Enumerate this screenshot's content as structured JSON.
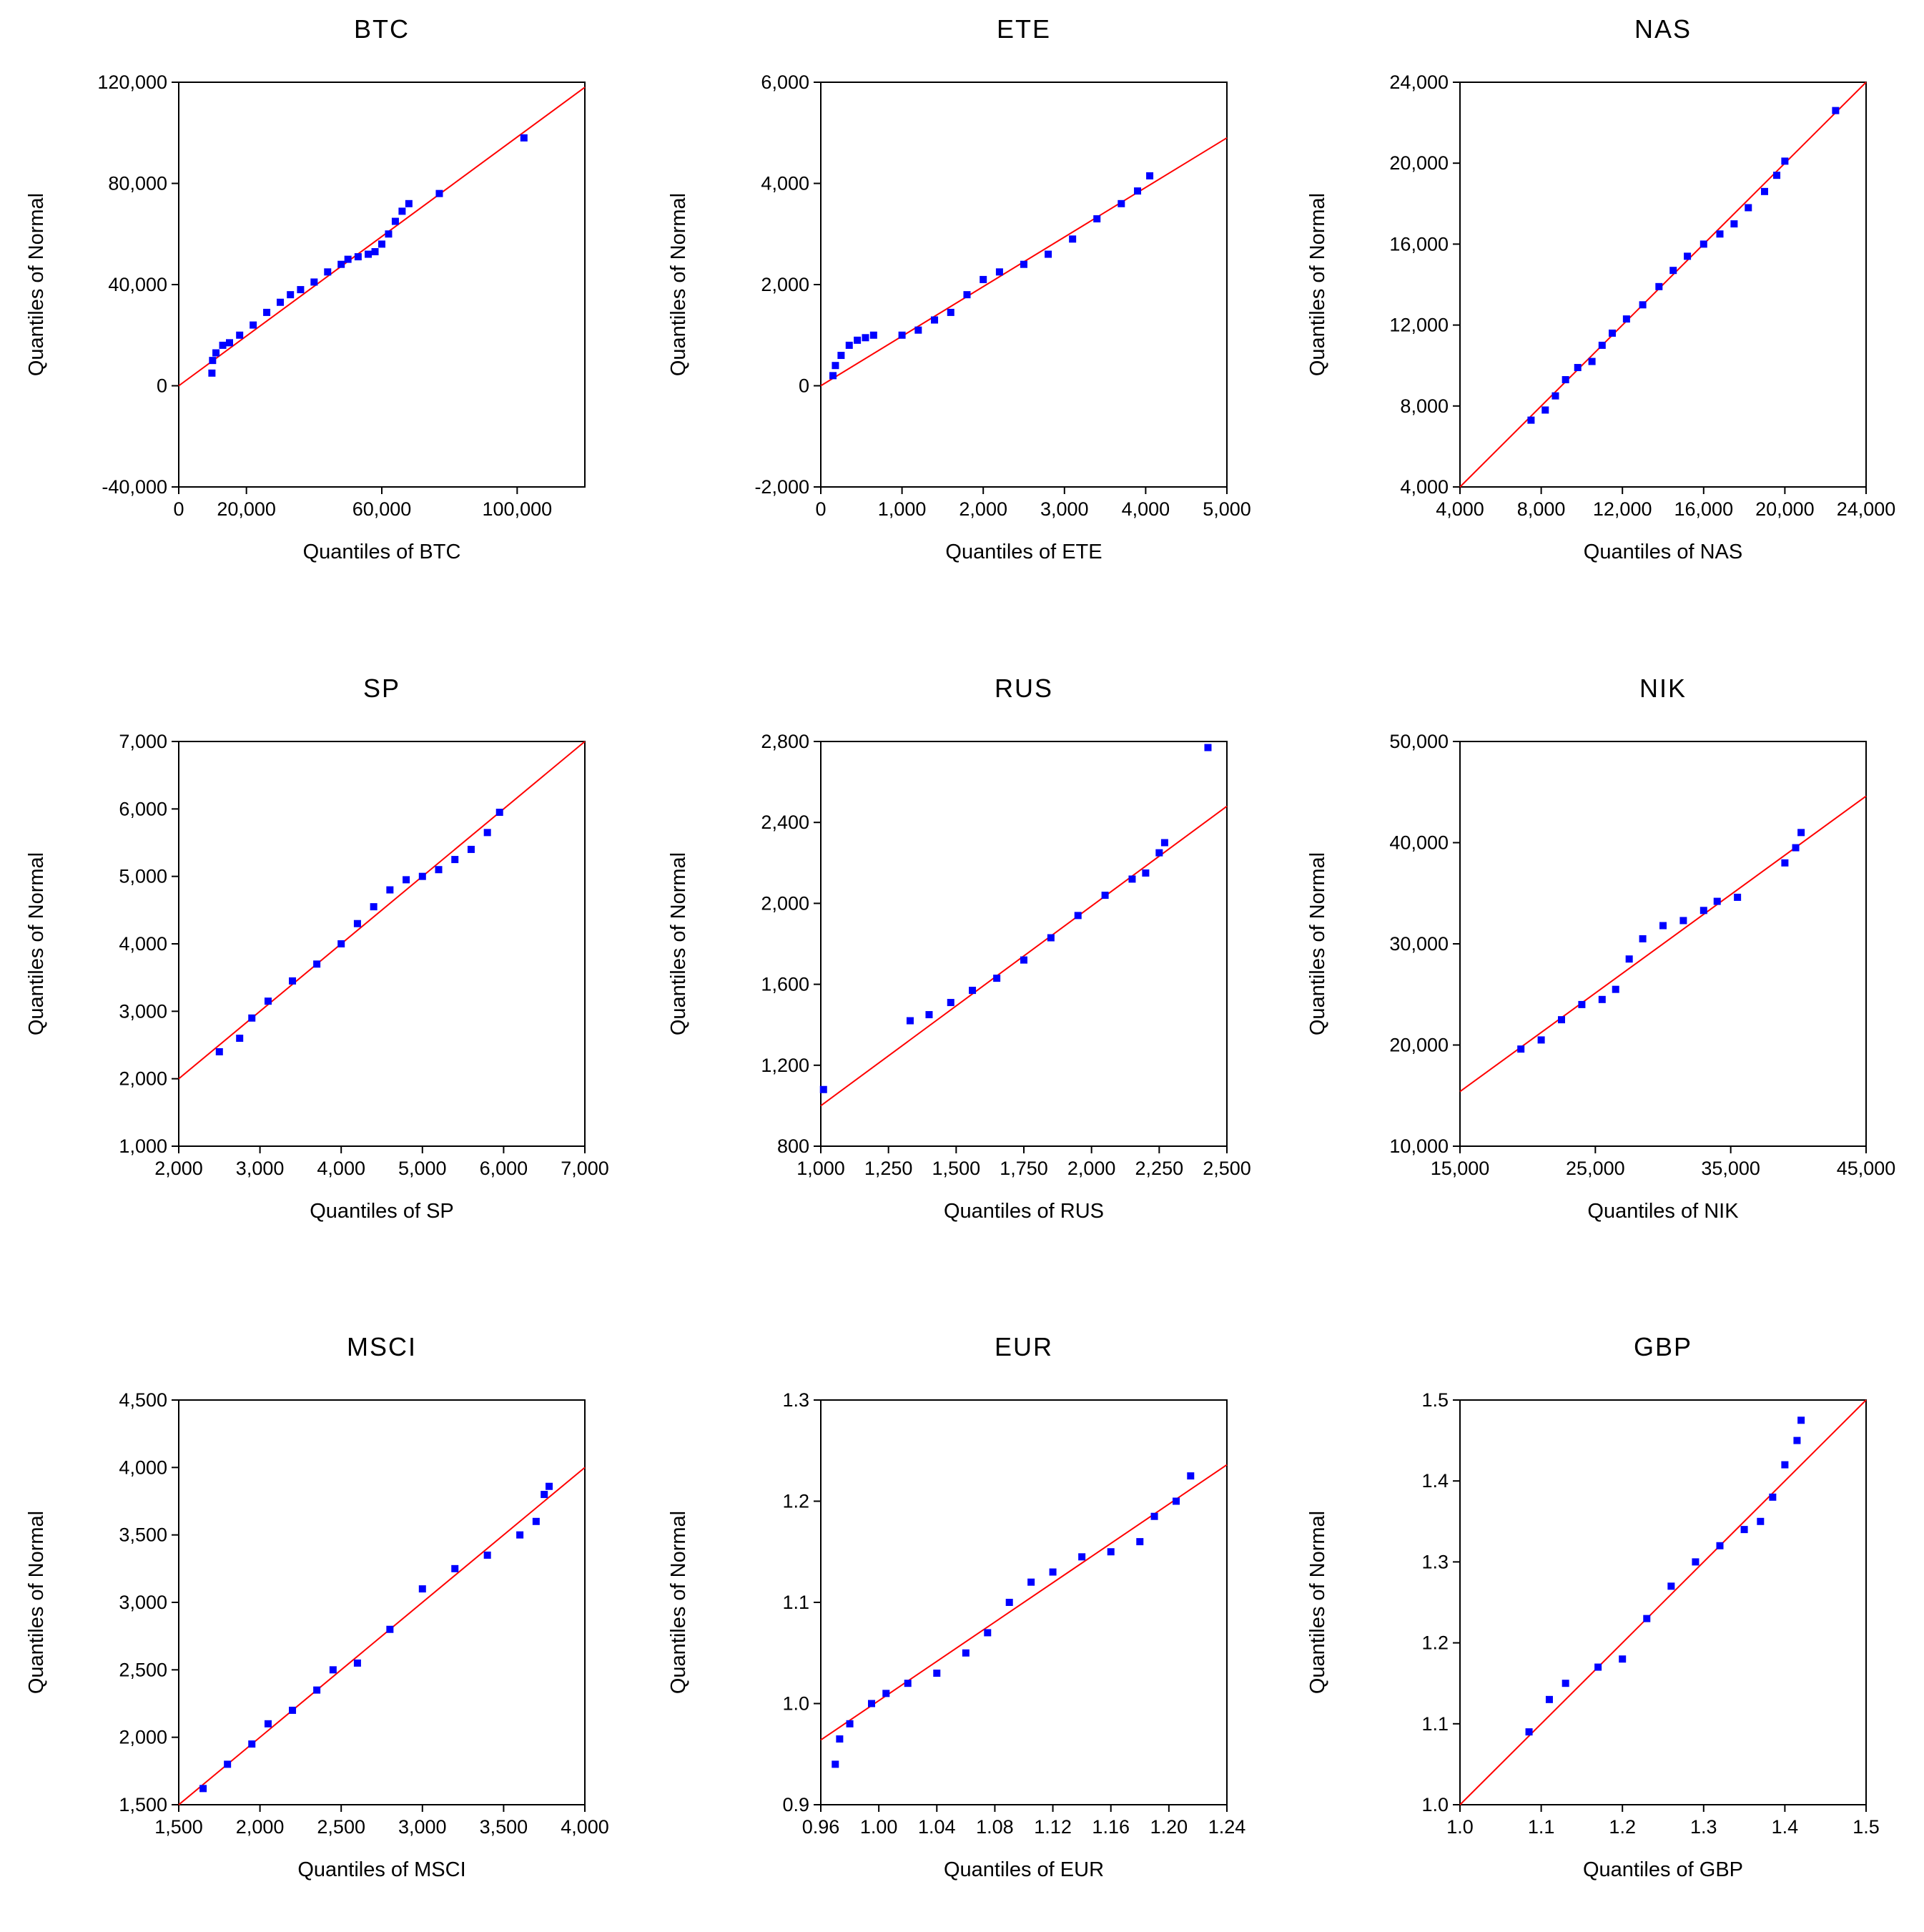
{
  "chart_data": [
    {
      "type": "scatter",
      "title": "BTC",
      "xlabel": "Quantiles of BTC",
      "ylabel": "Quantiles of Normal",
      "xlim": [
        0,
        120000
      ],
      "ylim": [
        -40000,
        120000
      ],
      "xticks": [
        0,
        20000,
        60000,
        100000
      ],
      "xtick_labels": [
        "0",
        "20,000",
        "60,000",
        "100,000"
      ],
      "yticks": [
        -40000,
        0,
        40000,
        80000,
        120000
      ],
      "ytick_labels": [
        "-40,000",
        "0",
        "40,000",
        "80,000",
        "120,000"
      ],
      "reference_line": [
        [
          0,
          0
        ],
        [
          120000,
          118000
        ]
      ],
      "points": [
        [
          9800,
          5000
        ],
        [
          10000,
          10000
        ],
        [
          11000,
          13000
        ],
        [
          13000,
          16000
        ],
        [
          15000,
          17000
        ],
        [
          18000,
          20000
        ],
        [
          22000,
          24000
        ],
        [
          26000,
          29000
        ],
        [
          30000,
          33000
        ],
        [
          33000,
          36000
        ],
        [
          36000,
          38000
        ],
        [
          40000,
          41000
        ],
        [
          44000,
          45000
        ],
        [
          48000,
          48000
        ],
        [
          50000,
          50000
        ],
        [
          53000,
          51000
        ],
        [
          56000,
          52000
        ],
        [
          58000,
          53000
        ],
        [
          60000,
          56000
        ],
        [
          62000,
          60000
        ],
        [
          64000,
          65000
        ],
        [
          66000,
          69000
        ],
        [
          68000,
          72000
        ],
        [
          77000,
          76000
        ],
        [
          102000,
          98000
        ]
      ]
    },
    {
      "type": "scatter",
      "title": "ETE",
      "xlabel": "Quantiles of ETE",
      "ylabel": "Quantiles of Normal",
      "xlim": [
        0,
        5000
      ],
      "ylim": [
        -2000,
        6000
      ],
      "xticks": [
        0,
        1000,
        2000,
        3000,
        4000,
        5000
      ],
      "xtick_labels": [
        "0",
        "1,000",
        "2,000",
        "3,000",
        "4,000",
        "5,000"
      ],
      "yticks": [
        -2000,
        0,
        2000,
        4000,
        6000
      ],
      "ytick_labels": [
        "-2,000",
        "0",
        "2,000",
        "4,000",
        "6,000"
      ],
      "reference_line": [
        [
          0,
          0
        ],
        [
          5000,
          4900
        ]
      ],
      "points": [
        [
          150,
          200
        ],
        [
          180,
          400
        ],
        [
          250,
          600
        ],
        [
          350,
          800
        ],
        [
          450,
          900
        ],
        [
          550,
          950
        ],
        [
          650,
          1000
        ],
        [
          1000,
          1000
        ],
        [
          1200,
          1100
        ],
        [
          1400,
          1300
        ],
        [
          1600,
          1450
        ],
        [
          1800,
          1800
        ],
        [
          2000,
          2100
        ],
        [
          2200,
          2250
        ],
        [
          2500,
          2400
        ],
        [
          2800,
          2600
        ],
        [
          3100,
          2900
        ],
        [
          3400,
          3300
        ],
        [
          3700,
          3600
        ],
        [
          3900,
          3850
        ],
        [
          4050,
          4150
        ]
      ]
    },
    {
      "type": "scatter",
      "title": "NAS",
      "xlabel": "Quantiles of NAS",
      "ylabel": "Quantiles of Normal",
      "xlim": [
        4000,
        24000
      ],
      "ylim": [
        4000,
        24000
      ],
      "xticks": [
        4000,
        8000,
        12000,
        16000,
        20000,
        24000
      ],
      "xtick_labels": [
        "4,000",
        "8,000",
        "12,000",
        "16,000",
        "20,000",
        "24,000"
      ],
      "yticks": [
        4000,
        8000,
        12000,
        16000,
        20000,
        24000
      ],
      "ytick_labels": [
        "4,000",
        "8,000",
        "12,000",
        "16,000",
        "20,000",
        "24,000"
      ],
      "reference_line": [
        [
          4000,
          4000
        ],
        [
          24000,
          24000
        ]
      ],
      "points": [
        [
          7500,
          7300
        ],
        [
          8200,
          7800
        ],
        [
          8700,
          8500
        ],
        [
          9200,
          9300
        ],
        [
          9800,
          9900
        ],
        [
          10500,
          10200
        ],
        [
          11000,
          11000
        ],
        [
          11500,
          11600
        ],
        [
          12200,
          12300
        ],
        [
          13000,
          13000
        ],
        [
          13800,
          13900
        ],
        [
          14500,
          14700
        ],
        [
          15200,
          15400
        ],
        [
          16000,
          16000
        ],
        [
          16800,
          16500
        ],
        [
          17500,
          17000
        ],
        [
          18200,
          17800
        ],
        [
          19000,
          18600
        ],
        [
          19600,
          19400
        ],
        [
          20000,
          20100
        ],
        [
          22500,
          22600
        ]
      ]
    },
    {
      "type": "scatter",
      "title": "SP",
      "xlabel": "Quantiles of SP",
      "ylabel": "Quantiles of Normal",
      "xlim": [
        2000,
        7000
      ],
      "ylim": [
        1000,
        7000
      ],
      "xticks": [
        2000,
        3000,
        4000,
        5000,
        6000,
        7000
      ],
      "xtick_labels": [
        "2,000",
        "3,000",
        "4,000",
        "5,000",
        "6,000",
        "7,000"
      ],
      "yticks": [
        1000,
        2000,
        3000,
        4000,
        5000,
        6000,
        7000
      ],
      "ytick_labels": [
        "1,000",
        "2,000",
        "3,000",
        "4,000",
        "5,000",
        "6,000",
        "7,000"
      ],
      "reference_line": [
        [
          2000,
          2000
        ],
        [
          7000,
          7000
        ]
      ],
      "points": [
        [
          2500,
          2400
        ],
        [
          2750,
          2600
        ],
        [
          2900,
          2900
        ],
        [
          3100,
          3150
        ],
        [
          3400,
          3450
        ],
        [
          3700,
          3700
        ],
        [
          4000,
          4000
        ],
        [
          4200,
          4300
        ],
        [
          4400,
          4550
        ],
        [
          4600,
          4800
        ],
        [
          4800,
          4950
        ],
        [
          5000,
          5000
        ],
        [
          5200,
          5100
        ],
        [
          5400,
          5250
        ],
        [
          5600,
          5400
        ],
        [
          5800,
          5650
        ],
        [
          5950,
          5950
        ]
      ]
    },
    {
      "type": "scatter",
      "title": "RUS",
      "xlabel": "Quantiles of RUS",
      "ylabel": "Quantiles of Normal",
      "xlim": [
        1000,
        2500
      ],
      "ylim": [
        800,
        2800
      ],
      "xticks": [
        1000,
        1250,
        1500,
        1750,
        2000,
        2250,
        2500
      ],
      "xtick_labels": [
        "1,000",
        "1,250",
        "1,500",
        "1,750",
        "2,000",
        "2,250",
        "2,500"
      ],
      "yticks": [
        800,
        1200,
        1600,
        2000,
        2400,
        2800
      ],
      "ytick_labels": [
        "800",
        "1,200",
        "1,600",
        "2,000",
        "2,400",
        "2,800"
      ],
      "reference_line": [
        [
          1000,
          1000
        ],
        [
          2500,
          2480
        ]
      ],
      "points": [
        [
          1010,
          1080
        ],
        [
          1330,
          1420
        ],
        [
          1400,
          1450
        ],
        [
          1480,
          1510
        ],
        [
          1560,
          1570
        ],
        [
          1650,
          1630
        ],
        [
          1750,
          1720
        ],
        [
          1850,
          1830
        ],
        [
          1950,
          1940
        ],
        [
          2050,
          2040
        ],
        [
          2150,
          2120
        ],
        [
          2200,
          2150
        ],
        [
          2250,
          2250
        ],
        [
          2270,
          2300
        ],
        [
          2430,
          2770
        ]
      ]
    },
    {
      "type": "scatter",
      "title": "NIK",
      "xlabel": "Quantiles of NIK",
      "ylabel": "Quantiles of Normal",
      "xlim": [
        15000,
        45000
      ],
      "ylim": [
        10000,
        50000
      ],
      "xticks": [
        15000,
        25000,
        35000,
        45000
      ],
      "xtick_labels": [
        "15,000",
        "25,000",
        "35,000",
        "45,000"
      ],
      "yticks": [
        10000,
        20000,
        30000,
        40000,
        50000
      ],
      "ytick_labels": [
        "10,000",
        "20,000",
        "30,000",
        "40,000",
        "50,000"
      ],
      "reference_line": [
        [
          15000,
          15400
        ],
        [
          45000,
          44600
        ]
      ],
      "points": [
        [
          19500,
          19600
        ],
        [
          21000,
          20500
        ],
        [
          22500,
          22500
        ],
        [
          24000,
          24000
        ],
        [
          25500,
          24500
        ],
        [
          26500,
          25500
        ],
        [
          27500,
          28500
        ],
        [
          28500,
          30500
        ],
        [
          30000,
          31800
        ],
        [
          31500,
          32300
        ],
        [
          33000,
          33300
        ],
        [
          34000,
          34200
        ],
        [
          35500,
          34600
        ],
        [
          39000,
          38000
        ],
        [
          39800,
          39500
        ],
        [
          40200,
          41000
        ]
      ]
    },
    {
      "type": "scatter",
      "title": "MSCI",
      "xlabel": "Quantiles of MSCI",
      "ylabel": "Quantiles of Normal",
      "xlim": [
        1500,
        4000
      ],
      "ylim": [
        1500,
        4500
      ],
      "xticks": [
        1500,
        2000,
        2500,
        3000,
        3500,
        4000
      ],
      "xtick_labels": [
        "1,500",
        "2,000",
        "2,500",
        "3,000",
        "3,500",
        "4,000"
      ],
      "yticks": [
        1500,
        2000,
        2500,
        3000,
        3500,
        4000,
        4500
      ],
      "ytick_labels": [
        "1,500",
        "2,000",
        "2,500",
        "3,000",
        "3,500",
        "4,000",
        "4,500"
      ],
      "reference_line": [
        [
          1500,
          1500
        ],
        [
          4000,
          4000
        ]
      ],
      "points": [
        [
          1650,
          1620
        ],
        [
          1800,
          1800
        ],
        [
          1950,
          1950
        ],
        [
          2050,
          2100
        ],
        [
          2200,
          2200
        ],
        [
          2350,
          2350
        ],
        [
          2450,
          2500
        ],
        [
          2600,
          2550
        ],
        [
          2800,
          2800
        ],
        [
          3000,
          3100
        ],
        [
          3200,
          3250
        ],
        [
          3400,
          3350
        ],
        [
          3600,
          3500
        ],
        [
          3700,
          3600
        ],
        [
          3750,
          3800
        ],
        [
          3780,
          3860
        ]
      ]
    },
    {
      "type": "scatter",
      "title": "EUR",
      "xlabel": "Quantiles of EUR",
      "ylabel": "Quantiles of Normal",
      "xlim": [
        0.96,
        1.24
      ],
      "ylim": [
        0.9,
        1.3
      ],
      "xticks": [
        0.96,
        1.0,
        1.04,
        1.08,
        1.12,
        1.16,
        1.2,
        1.24
      ],
      "xtick_labels": [
        "0.96",
        "1.00",
        "1.04",
        "1.08",
        "1.12",
        "1.16",
        "1.20",
        "1.24"
      ],
      "yticks": [
        0.9,
        1.0,
        1.1,
        1.2,
        1.3
      ],
      "ytick_labels": [
        "0.9",
        "1.0",
        "1.1",
        "1.2",
        "1.3"
      ],
      "reference_line": [
        [
          0.96,
          0.964
        ],
        [
          1.24,
          1.236
        ]
      ],
      "points": [
        [
          0.97,
          0.94
        ],
        [
          0.973,
          0.965
        ],
        [
          0.98,
          0.98
        ],
        [
          0.995,
          1.0
        ],
        [
          1.005,
          1.01
        ],
        [
          1.02,
          1.02
        ],
        [
          1.04,
          1.03
        ],
        [
          1.06,
          1.05
        ],
        [
          1.075,
          1.07
        ],
        [
          1.09,
          1.1
        ],
        [
          1.105,
          1.12
        ],
        [
          1.12,
          1.13
        ],
        [
          1.14,
          1.145
        ],
        [
          1.16,
          1.15
        ],
        [
          1.18,
          1.16
        ],
        [
          1.19,
          1.185
        ],
        [
          1.205,
          1.2
        ],
        [
          1.215,
          1.225
        ]
      ]
    },
    {
      "type": "scatter",
      "title": "GBP",
      "xlabel": "Quantiles of GBP",
      "ylabel": "Quantiles of Normal",
      "xlim": [
        1.0,
        1.5
      ],
      "ylim": [
        1.0,
        1.5
      ],
      "xticks": [
        1.0,
        1.1,
        1.2,
        1.3,
        1.4,
        1.5
      ],
      "xtick_labels": [
        "1.0",
        "1.1",
        "1.2",
        "1.3",
        "1.4",
        "1.5"
      ],
      "yticks": [
        1.0,
        1.1,
        1.2,
        1.3,
        1.4,
        1.5
      ],
      "ytick_labels": [
        "1.0",
        "1.1",
        "1.2",
        "1.3",
        "1.4",
        "1.5"
      ],
      "reference_line": [
        [
          1.0,
          1.0
        ],
        [
          1.5,
          1.5
        ]
      ],
      "points": [
        [
          1.085,
          1.09
        ],
        [
          1.11,
          1.13
        ],
        [
          1.13,
          1.15
        ],
        [
          1.17,
          1.17
        ],
        [
          1.2,
          1.18
        ],
        [
          1.23,
          1.23
        ],
        [
          1.26,
          1.27
        ],
        [
          1.29,
          1.3
        ],
        [
          1.32,
          1.32
        ],
        [
          1.35,
          1.34
        ],
        [
          1.37,
          1.35
        ],
        [
          1.385,
          1.38
        ],
        [
          1.4,
          1.42
        ],
        [
          1.415,
          1.45
        ],
        [
          1.42,
          1.475
        ]
      ]
    }
  ],
  "colors": {
    "points": "#0000ff",
    "reference_line": "#ff0000",
    "axes": "#000000"
  }
}
